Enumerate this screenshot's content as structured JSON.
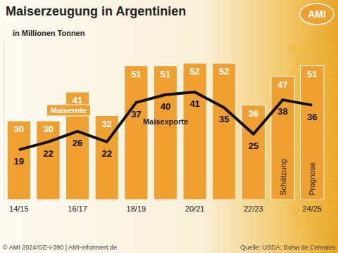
{
  "chart_data": {
    "type": "bar",
    "title": "Maiserzeugung in Argentinien",
    "subtitle": "in Millionen Tonnen",
    "categories": [
      "14/15",
      null,
      "16/17",
      null,
      "18/19",
      null,
      "20/21",
      null,
      "22/23",
      null,
      "24/25"
    ],
    "series": [
      {
        "name": "Maisernte",
        "type": "bar",
        "color": "#f0a031",
        "values": [
          30,
          30,
          41,
          32,
          51,
          51,
          52,
          52,
          36,
          47,
          51
        ]
      },
      {
        "name": "Maisexporte",
        "type": "line",
        "color": "#111111",
        "values": [
          19,
          22,
          26,
          22,
          37,
          40,
          41,
          35,
          25,
          38,
          36
        ]
      }
    ],
    "annotations": [
      null,
      null,
      null,
      null,
      null,
      null,
      null,
      null,
      null,
      "Schätzung",
      "Prognose"
    ],
    "ylim": [
      0,
      60
    ],
    "tick_labels": "x",
    "data_labels": true,
    "logo": "AMI",
    "footer": "© AMI 2024/GE-I-390 | AMI-informiert.de",
    "source": "Quelle: USDA; Bolsa de Cereales"
  }
}
